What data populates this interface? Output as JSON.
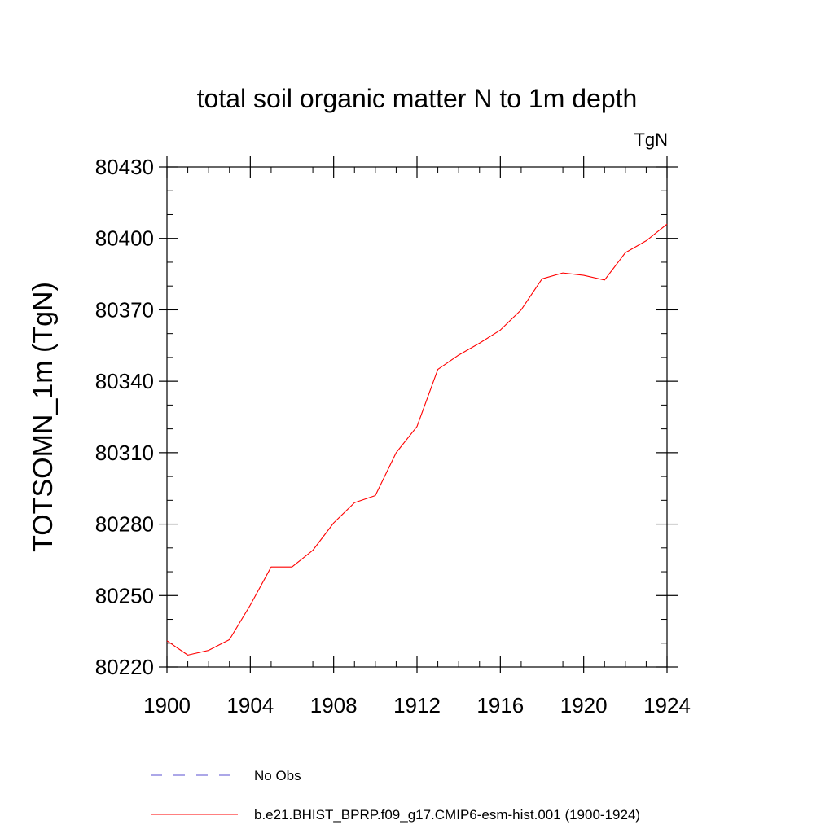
{
  "chart_data": {
    "type": "line",
    "title": "total soil organic matter N to 1m depth",
    "units_label": "TgN",
    "xlabel": "",
    "ylabel": "TOTSOMN_1m  (TgN)",
    "xlim": [
      1900,
      1924
    ],
    "ylim": [
      80220,
      80430
    ],
    "x_ticks": [
      1900,
      1904,
      1908,
      1912,
      1916,
      1920,
      1924
    ],
    "y_ticks": [
      80220,
      80250,
      80280,
      80310,
      80340,
      80370,
      80400,
      80430
    ],
    "x_minor_step": 1,
    "y_minor_step": 10,
    "grid": false,
    "legend_position": "bottom",
    "series": [
      {
        "name": "b.e21.BHIST_BPRP.f09_g17.CMIP6-esm-hist.001 (1900-1924)",
        "color": "#ff0000",
        "style": "solid",
        "x": [
          1900,
          1901,
          1902,
          1903,
          1904,
          1905,
          1906,
          1907,
          1908,
          1909,
          1910,
          1911,
          1912,
          1913,
          1914,
          1915,
          1916,
          1917,
          1918,
          1919,
          1920,
          1921,
          1922,
          1923,
          1924
        ],
        "values": [
          80231,
          80225,
          80227,
          80231.5,
          80246,
          80262,
          80262,
          80269,
          80280.5,
          80289,
          80292,
          80310,
          80321,
          80345,
          80351,
          80356,
          80361.5,
          80370,
          80383,
          80385.5,
          80384.5,
          80382.5,
          80394,
          80399,
          80406
        ]
      }
    ],
    "legend": [
      {
        "label": "No Obs",
        "color": "#5a4fd0",
        "style": "dashed"
      },
      {
        "label": "b.e21.BHIST_BPRP.f09_g17.CMIP6-esm-hist.001 (1900-1924)",
        "color": "#ff0000",
        "style": "solid"
      }
    ]
  }
}
